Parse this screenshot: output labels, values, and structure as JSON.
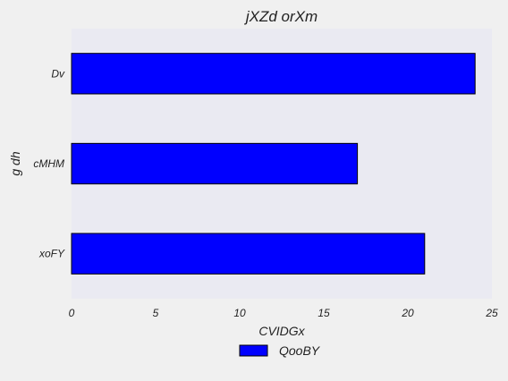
{
  "chart_data": {
    "type": "bar",
    "orientation": "horizontal",
    "title": "jXZd orXm",
    "xlabel": "CVIDGx",
    "ylabel": "g  dh",
    "categories": [
      "xoFY",
      "cMHM",
      "Dv"
    ],
    "series": [
      {
        "name": "QooBY",
        "values": [
          21,
          17,
          24
        ],
        "color": "#0000ff"
      }
    ],
    "xlim": [
      0,
      25
    ],
    "xticks": [
      0,
      5,
      10,
      15,
      20,
      25
    ],
    "grid": false,
    "legend_position": "bottom-center",
    "colors": {
      "plot_background": "#eaeaf2",
      "figure_background": "#f0f0f0",
      "bar_edge": "#000000"
    }
  }
}
